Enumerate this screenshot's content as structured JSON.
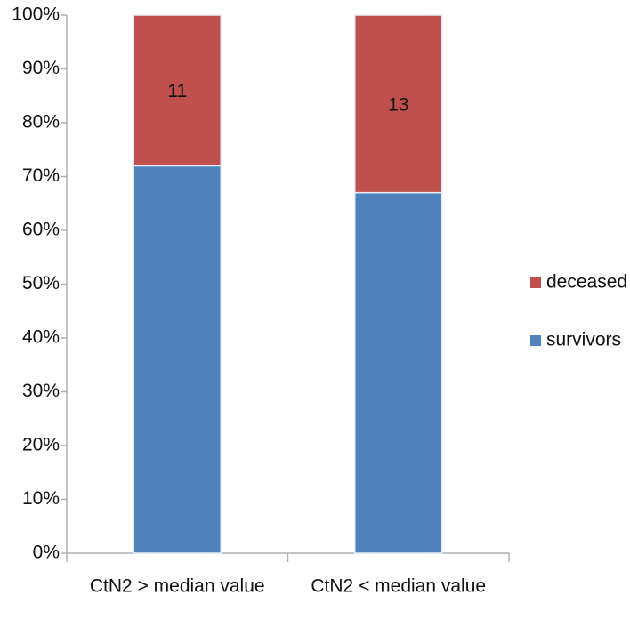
{
  "chart_data": {
    "type": "stacked_bar",
    "categories": [
      "CtN2 > median value",
      "CtN2 < median value"
    ],
    "series": [
      {
        "name": "survivors",
        "color": "#4f81bd",
        "values": [
          72,
          67
        ]
      },
      {
        "name": "deceased",
        "color": "#c0504d",
        "values": [
          28,
          33
        ],
        "data_labels": [
          "11",
          "13"
        ]
      }
    ],
    "ylim": [
      0,
      100
    ],
    "yticks": [
      {
        "value": 0,
        "label": "0%"
      },
      {
        "value": 10,
        "label": "10%"
      },
      {
        "value": 20,
        "label": "20%"
      },
      {
        "value": 30,
        "label": "30%"
      },
      {
        "value": 40,
        "label": "40%"
      },
      {
        "value": 50,
        "label": "50%"
      },
      {
        "value": 60,
        "label": "60%"
      },
      {
        "value": 70,
        "label": "70%"
      },
      {
        "value": 80,
        "label": "80%"
      },
      {
        "value": 90,
        "label": "90%"
      },
      {
        "value": 100,
        "label": "100%"
      }
    ],
    "grid": false,
    "legend": "right"
  }
}
